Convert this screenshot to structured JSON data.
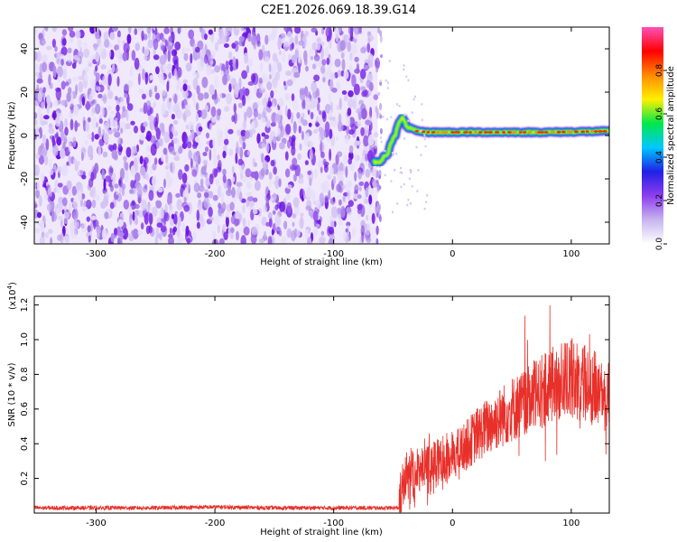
{
  "title": "C2E1.2026.069.18.39.G14",
  "chart_data": [
    {
      "type": "heatmap",
      "name": "spectrogram",
      "xlabel": "Height of straight line (km)",
      "ylabel": "Frequency (Hz)",
      "xlim": [
        -352,
        132
      ],
      "ylim": [
        -50,
        50
      ],
      "x_ticks": [
        -300,
        -200,
        -100,
        0,
        100
      ],
      "y_ticks": [
        -40,
        -20,
        0,
        20,
        40
      ],
      "noise_region_end_km": -63,
      "ridge": [
        {
          "x": -66,
          "y": -12
        },
        {
          "x": -62,
          "y": -13
        },
        {
          "x": -58,
          "y": -10
        },
        {
          "x": -54,
          "y": -8
        },
        {
          "x": -52,
          "y": -3
        },
        {
          "x": -48,
          "y": 0
        },
        {
          "x": -46,
          "y": 5
        },
        {
          "x": -42,
          "y": 8
        },
        {
          "x": -38,
          "y": 4
        },
        {
          "x": -30,
          "y": 2
        },
        {
          "x": -20,
          "y": 1.5
        },
        {
          "x": 0,
          "y": 1.5
        },
        {
          "x": 40,
          "y": 1.5
        },
        {
          "x": 80,
          "y": 1.5
        },
        {
          "x": 132,
          "y": 2
        }
      ],
      "colorbar": {
        "label": "Normalized spectral amplitude",
        "range": [
          0,
          1
        ],
        "ticks": [
          "0.0",
          "0.2",
          "0.4",
          "0.6",
          "0.8"
        ],
        "tick_values": [
          0,
          0.2,
          0.4,
          0.6,
          0.8
        ],
        "colors": [
          "#ffffff",
          "#c8b4ee",
          "#8d3dee",
          "#2020e6",
          "#00c8ff",
          "#00e84a",
          "#fff000",
          "#ff8a00",
          "#ff0000",
          "#ff50b8"
        ]
      }
    },
    {
      "type": "line",
      "name": "snr",
      "xlabel": "Height of straight line (km)",
      "ylabel": "SNR (10 * v/v)",
      "y_multiplier": "(x10",
      "y_multiplier_exp": "4",
      "xlim": [
        -352,
        132
      ],
      "ylim": [
        0,
        1.25
      ],
      "x_ticks": [
        -300,
        -200,
        -100,
        0,
        100
      ],
      "y_ticks": [
        0.2,
        0.4,
        0.6,
        0.8,
        1.0,
        1.2
      ],
      "y_tick_labels": [
        "0.2",
        "0.4",
        "0.6",
        "0.8",
        "1.0",
        "1.2"
      ],
      "series_color": "#e8302a",
      "series": [
        {
          "name": "SNR",
          "x": [
            -352,
            -300,
            -250,
            -200,
            -150,
            -100,
            -60,
            -45,
            -38,
            -30,
            -20,
            -10,
            0,
            10,
            20,
            30,
            40,
            50,
            60,
            70,
            80,
            90,
            100,
            110,
            120,
            132
          ],
          "y": [
            0.03,
            0.03,
            0.03,
            0.035,
            0.03,
            0.03,
            0.03,
            0.03,
            0.25,
            0.22,
            0.28,
            0.3,
            0.33,
            0.38,
            0.45,
            0.5,
            0.55,
            0.6,
            0.63,
            0.68,
            0.72,
            0.76,
            0.78,
            0.75,
            0.72,
            0.66
          ]
        }
      ]
    }
  ]
}
